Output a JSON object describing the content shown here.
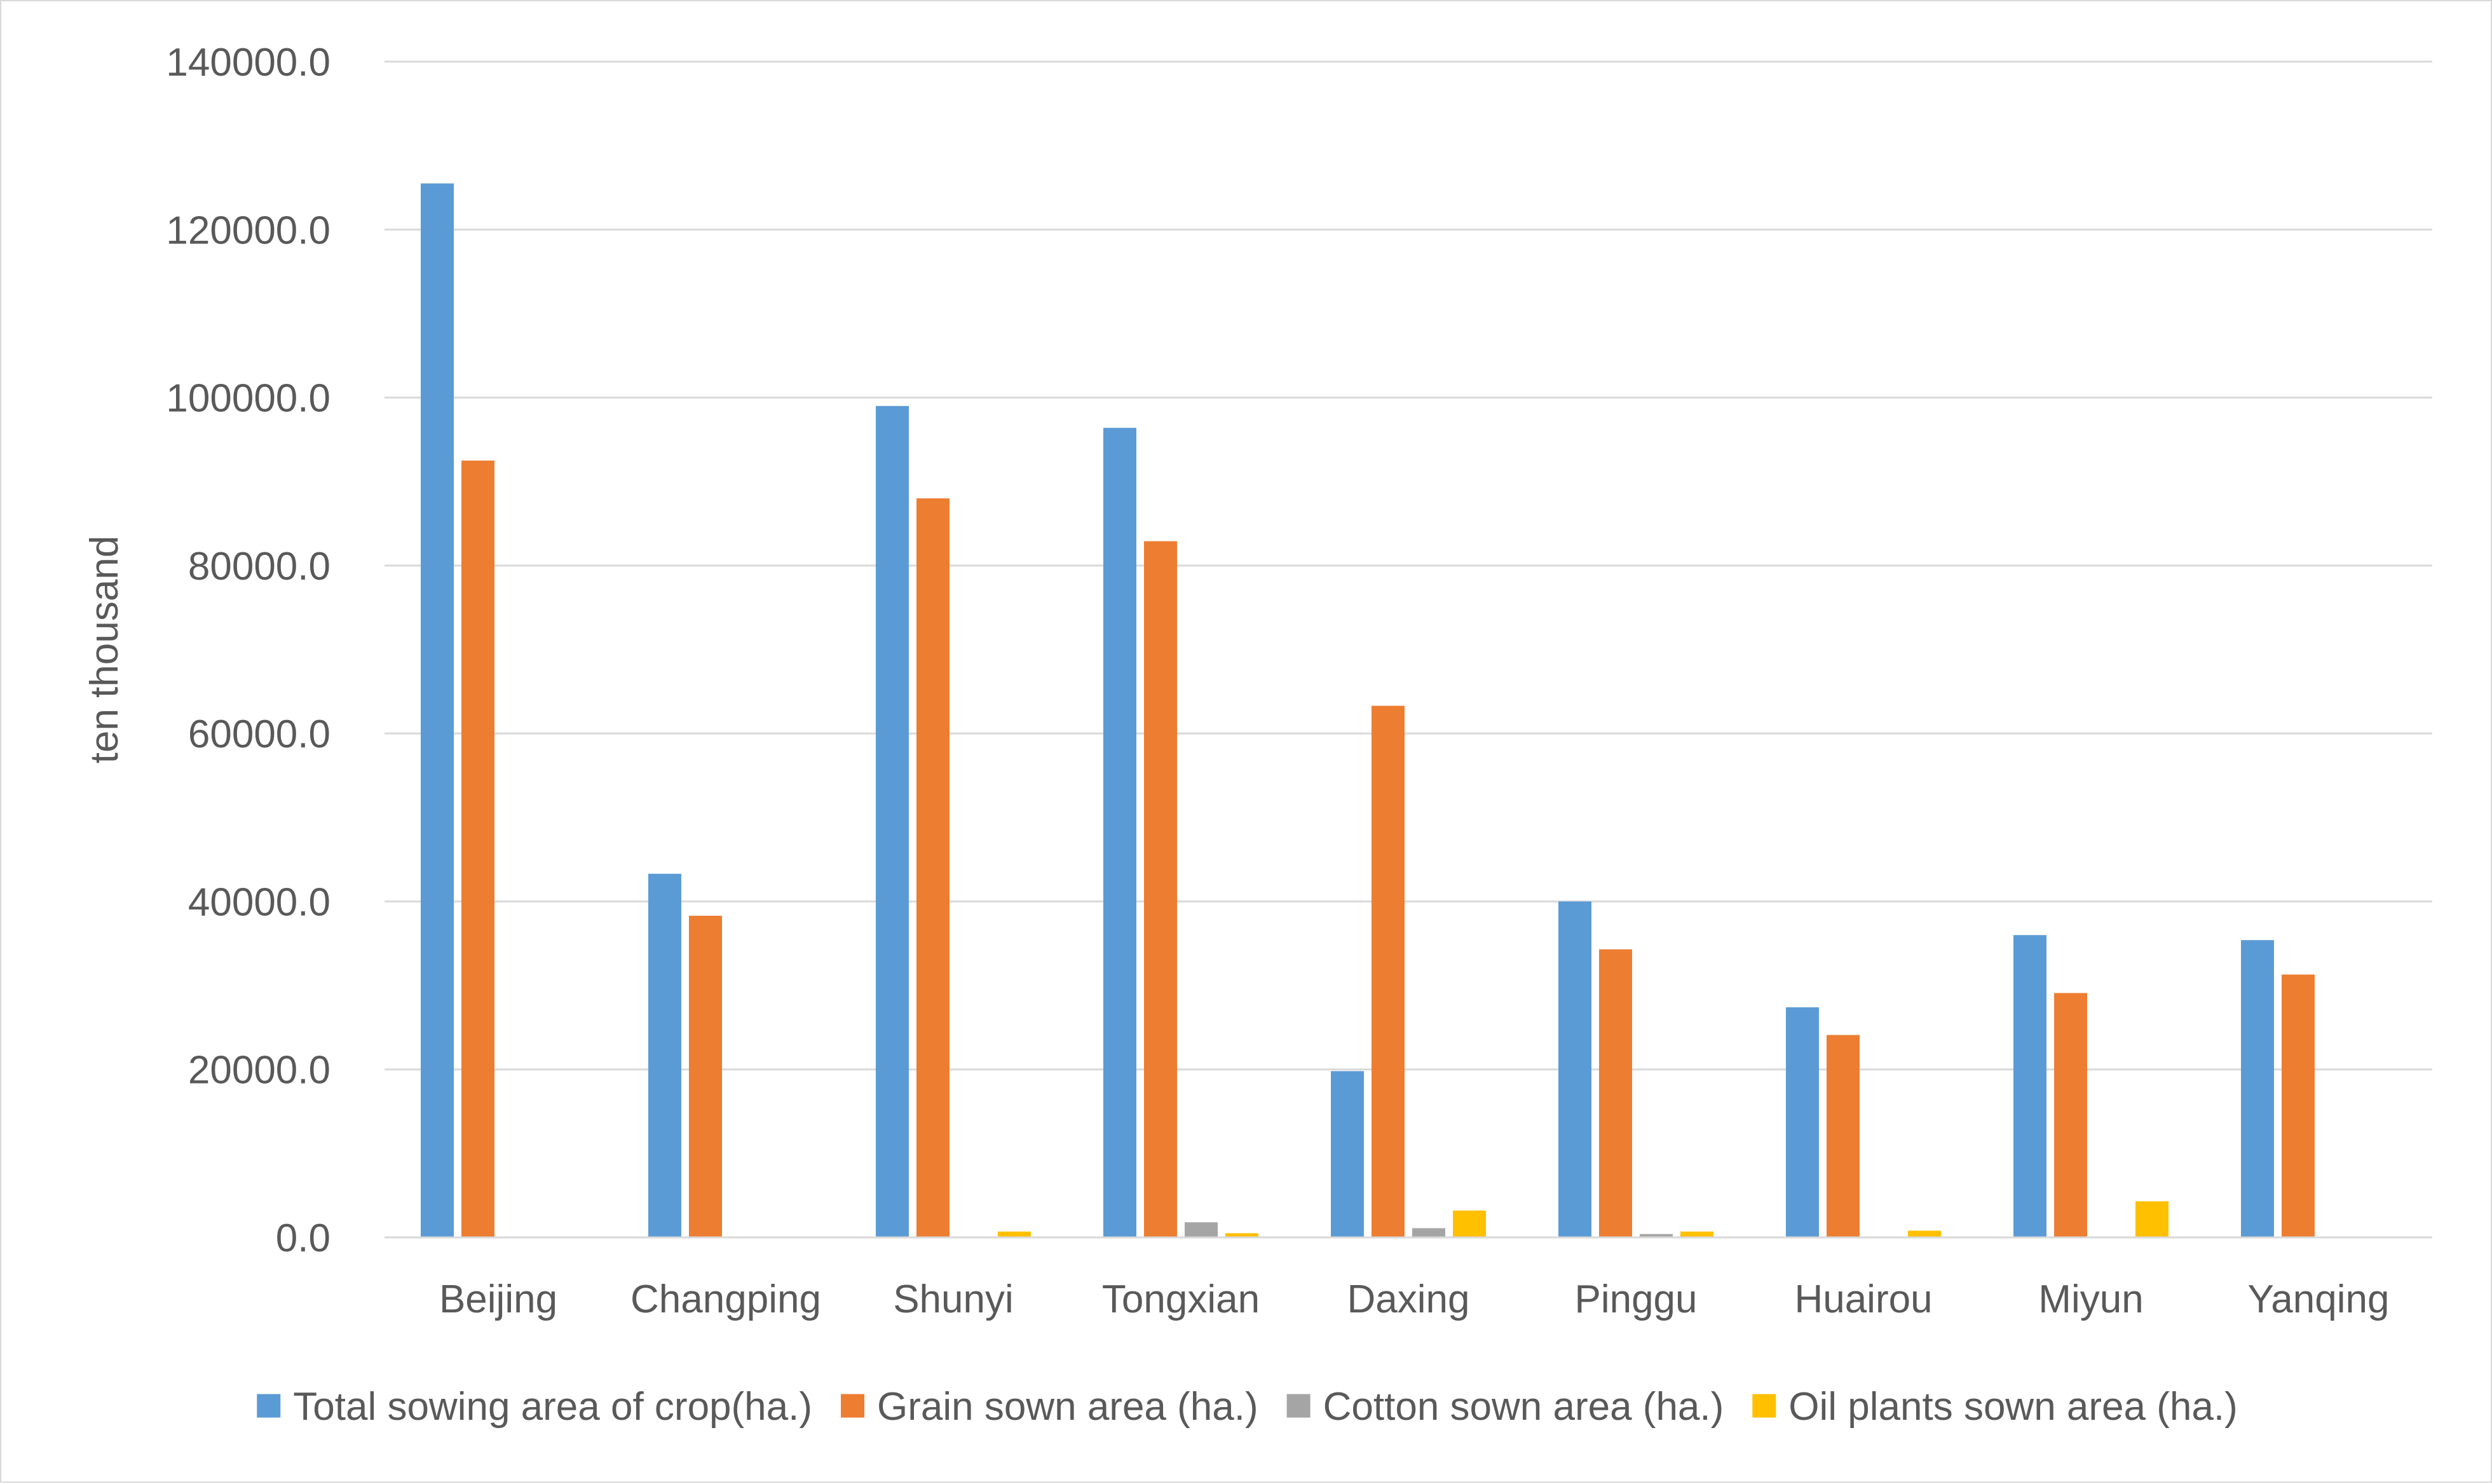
{
  "chart_data": {
    "type": "bar",
    "title": "",
    "xlabel": "",
    "ylabel": "ten thousand",
    "ylim": [
      0,
      140000
    ],
    "y_ticks": [
      "0.0",
      "20000.0",
      "40000.0",
      "60000.0",
      "80000.0",
      "100000.0",
      "120000.0",
      "140000.0"
    ],
    "grid": true,
    "legend_position": "bottom",
    "categories": [
      "Beijing",
      "Changping",
      "Shunyi",
      "Tongxian",
      "Daxing",
      "Pinggu",
      "Huairou",
      "Miyun",
      "Yanqing"
    ],
    "series": [
      {
        "name": "Total sowing area of crop(ha.)",
        "color": "#5b9bd5",
        "values": [
          125500,
          43300,
          99000,
          96400,
          19800,
          40000,
          27400,
          36000,
          35400
        ]
      },
      {
        "name": "Grain sown area (ha.)",
        "color": "#ed7d31",
        "values": [
          92500,
          38300,
          88000,
          82900,
          63300,
          34300,
          24100,
          29100,
          31300
        ]
      },
      {
        "name": "Cotton sown area (ha.)",
        "color": "#a5a5a5",
        "values": [
          0,
          0,
          0,
          1800,
          1100,
          400,
          0,
          0,
          0
        ]
      },
      {
        "name": "Oil plants sown area (ha.)",
        "color": "#ffc000",
        "values": [
          0,
          0,
          700,
          500,
          3200,
          700,
          800,
          4300,
          0
        ]
      }
    ]
  }
}
